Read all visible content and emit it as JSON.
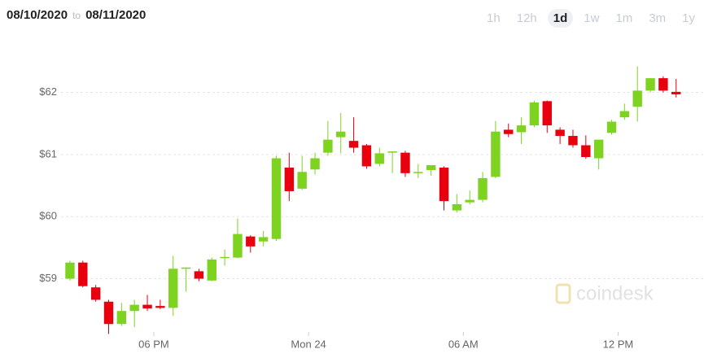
{
  "header": {
    "from": "08/10/2020",
    "to_word": "to",
    "to": "08/11/2020"
  },
  "range_buttons": [
    "1h",
    "12h",
    "1d",
    "1w",
    "1m",
    "3m",
    "1y"
  ],
  "selected_range": "1d",
  "watermark": "coindesk",
  "chart_data": {
    "type": "candlestick",
    "x": [
      14.75,
      15.25,
      15.75,
      16.25,
      16.75,
      17.25,
      17.75,
      18.25,
      18.75,
      19.25,
      19.75,
      20.25,
      20.75,
      21.25,
      21.75,
      22.25,
      22.75,
      23.25,
      23.75,
      24.25,
      24.75,
      25.25,
      25.75,
      26.25,
      26.75,
      27.25,
      27.75,
      28.25,
      28.75,
      29.25,
      29.75,
      30.25,
      30.75,
      31.25,
      31.75,
      32.25,
      32.75,
      33.25,
      33.75,
      34.25,
      34.75,
      35.25,
      35.75,
      36.25,
      36.75,
      37.25,
      37.75,
      38.25
    ],
    "open": [
      59.0,
      59.26,
      58.86,
      58.63,
      58.27,
      58.48,
      58.58,
      58.56,
      58.53,
      59.16,
      59.12,
      58.97,
      59.33,
      59.34,
      59.68,
      59.6,
      59.64,
      60.79,
      60.45,
      60.76,
      61.03,
      61.28,
      61.22,
      61.15,
      60.85,
      61.03,
      61.03,
      60.7,
      60.75,
      60.79,
      60.1,
      60.23,
      60.27,
      60.64,
      61.4,
      61.36,
      61.47,
      61.86,
      61.4,
      61.3,
      61.15,
      60.94,
      61.35,
      61.6,
      61.77,
      62.03,
      62.23,
      62.01
    ],
    "high": [
      59.29,
      59.29,
      58.9,
      58.66,
      58.61,
      58.66,
      58.74,
      58.66,
      59.37,
      59.18,
      59.16,
      59.34,
      59.47,
      59.97,
      59.7,
      59.77,
      60.98,
      61.03,
      60.98,
      61.03,
      61.54,
      61.67,
      61.6,
      61.17,
      61.11,
      61.05,
      61.06,
      60.85,
      60.83,
      60.81,
      60.36,
      60.42,
      60.72,
      61.54,
      61.5,
      61.6,
      61.87,
      61.87,
      61.44,
      61.4,
      61.31,
      61.24,
      61.56,
      61.82,
      62.42,
      62.23,
      62.26,
      62.22
    ],
    "low": [
      58.97,
      58.86,
      58.63,
      58.11,
      58.24,
      58.22,
      58.48,
      58.51,
      58.4,
      58.79,
      58.96,
      58.96,
      59.21,
      59.33,
      59.42,
      59.52,
      59.61,
      60.25,
      60.43,
      60.68,
      60.98,
      61.02,
      61.03,
      60.77,
      60.81,
      60.7,
      60.64,
      60.62,
      60.66,
      60.1,
      60.07,
      60.2,
      60.23,
      60.62,
      61.28,
      61.17,
      61.44,
      61.35,
      61.17,
      61.11,
      60.93,
      60.76,
      61.32,
      61.56,
      61.53,
      62.0,
      62.0,
      61.92
    ],
    "close": [
      59.26,
      58.88,
      58.66,
      58.27,
      58.48,
      58.58,
      58.52,
      58.53,
      59.16,
      59.18,
      59.0,
      59.31,
      59.35,
      59.72,
      59.52,
      59.67,
      60.94,
      60.41,
      60.72,
      60.94,
      61.24,
      61.37,
      61.11,
      60.81,
      61.02,
      61.05,
      60.7,
      60.72,
      60.83,
      60.25,
      60.2,
      60.27,
      60.62,
      61.37,
      61.33,
      61.47,
      61.84,
      61.47,
      61.3,
      61.15,
      60.96,
      61.24,
      61.53,
      61.7,
      62.03,
      62.23,
      62.03,
      61.97
    ],
    "up_color": "#7ed321",
    "down_color": "#e8000e",
    "xlim": [
      13.3,
      38.7
    ],
    "xticks": [
      {
        "value": 18,
        "label": "06 PM"
      },
      {
        "value": 24,
        "label": "Mon 24"
      },
      {
        "value": 30,
        "label": "06 AM"
      },
      {
        "value": 36,
        "label": "12 PM"
      }
    ],
    "ylim": [
      58.05,
      62.9
    ],
    "yticks": [
      {
        "value": 59,
        "label": "$59"
      },
      {
        "value": 60,
        "label": "$60"
      },
      {
        "value": 61,
        "label": "$61"
      },
      {
        "value": 62,
        "label": "$62"
      }
    ],
    "grid": true
  }
}
